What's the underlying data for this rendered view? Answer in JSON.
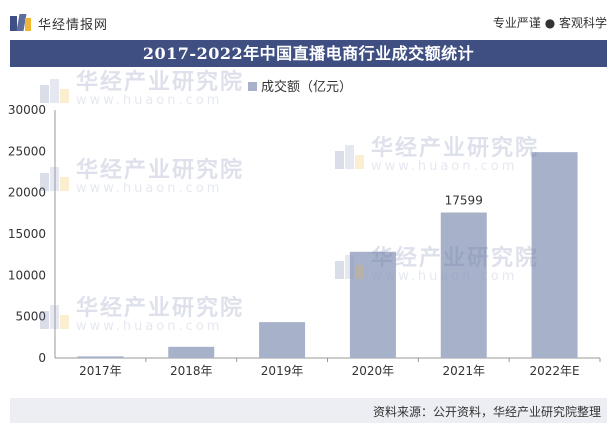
{
  "header": {
    "logo_text": "华经情报网",
    "tagline": "专业严谨 ● 客观科学"
  },
  "title": "2017-2022年中国直播电商行业成交额统计",
  "watermark": {
    "cn": "华经产业研究院",
    "en": "www.huaon.com"
  },
  "footer": {
    "source": "资料来源：公开资料，华经产业研究院整理"
  },
  "colors": {
    "bar": "#a7b1c9",
    "title_bg": "#3f4f82",
    "axis": "#999999",
    "footer_bg": "#eceef3"
  },
  "chart_data": {
    "type": "bar",
    "categories": [
      "2017年",
      "2018年",
      "2019年",
      "2020年",
      "2021年",
      "2022年E"
    ],
    "series": [
      {
        "name": "成交额（亿元）",
        "values": [
          196,
          1354,
          4338,
          12850,
          17599,
          24900
        ]
      }
    ],
    "data_labels": {
      "2021年": "17599"
    },
    "ylim": [
      0,
      30000
    ],
    "yticks": [
      0,
      5000,
      10000,
      15000,
      20000,
      25000,
      30000
    ],
    "xlabel": "",
    "ylabel": "",
    "legend": "top-center",
    "grid": false
  }
}
